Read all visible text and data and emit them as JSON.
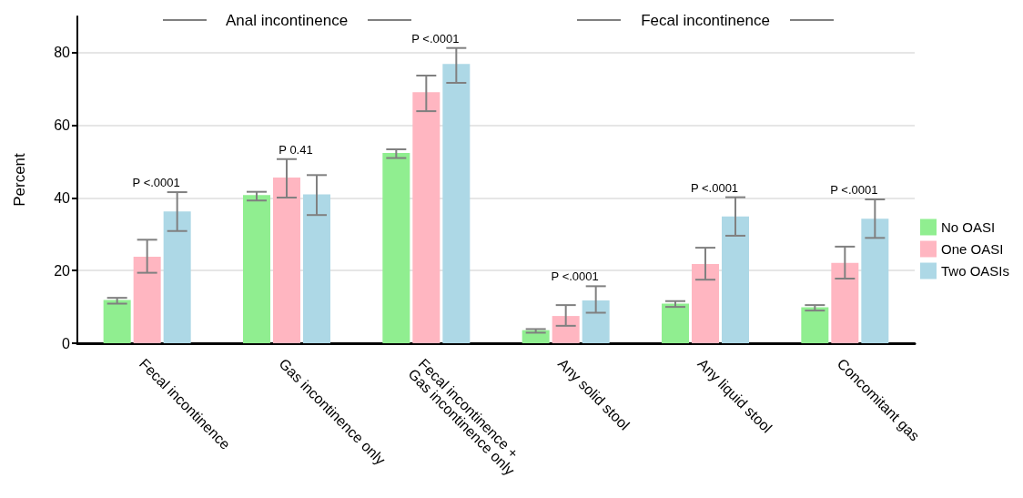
{
  "chart_data": {
    "type": "bar",
    "categories": [
      "Fecal incontinence",
      "Gas incontinence only",
      "Fecal incontinence +\nGas incontinence only",
      "Any solid stool",
      "Any liquid stool",
      "Concomitant gas"
    ],
    "series": [
      {
        "name": "No OASI",
        "color": "#90ee90",
        "values": [
          11.9,
          40.8,
          52.4,
          3.6,
          10.9,
          9.9
        ],
        "errors": [
          [
            10.9,
            12.5
          ],
          [
            39.3,
            41.7
          ],
          [
            51.0,
            53.4
          ],
          [
            2.9,
            3.9
          ],
          [
            10.0,
            11.6
          ],
          [
            9.0,
            10.5
          ]
        ]
      },
      {
        "name": "One OASI",
        "color": "#ffb6c1",
        "values": [
          23.8,
          45.6,
          69.1,
          7.5,
          21.8,
          22.1
        ],
        "errors": [
          [
            19.4,
            28.5
          ],
          [
            40.1,
            50.7
          ],
          [
            63.9,
            73.7
          ],
          [
            4.8,
            10.5
          ],
          [
            17.5,
            26.3
          ],
          [
            17.8,
            26.6
          ]
        ]
      },
      {
        "name": "Two OASIs",
        "color": "#add8e6",
        "values": [
          36.3,
          41.0,
          76.9,
          11.8,
          34.9,
          34.3
        ],
        "errors": [
          [
            30.9,
            41.6
          ],
          [
            35.3,
            46.3
          ],
          [
            71.7,
            81.3
          ],
          [
            8.4,
            15.7
          ],
          [
            29.6,
            40.2
          ],
          [
            29.0,
            39.6
          ]
        ]
      }
    ],
    "ylabel": "Percent",
    "ylim": [
      0,
      90
    ],
    "yticks": [
      0,
      20,
      40,
      60,
      80
    ],
    "grid": "y",
    "legend": "right",
    "annotations": [
      "Anal incontinence",
      "Fecal incontinence",
      "P <.0001",
      "P 0.41",
      "P <.0001",
      "P <.0001",
      "P <.0001",
      "P <.0001"
    ]
  }
}
